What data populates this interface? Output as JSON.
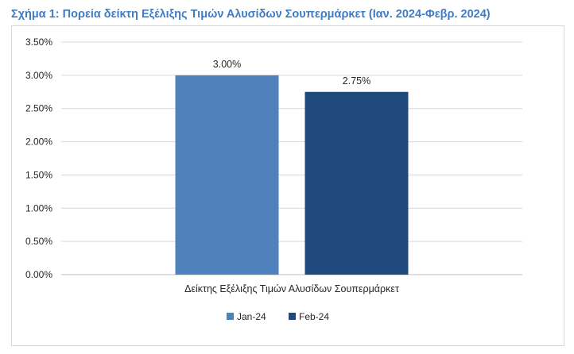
{
  "title": "Σχήμα 1: Πορεία δείκτη Εξέλιξης Τιμών Αλυσίδων Σουπερμάρκετ (Ιαν. 2024-Φεβρ. 2024)",
  "chart_data": {
    "type": "bar",
    "categories": [
      "Δείκτης Εξέλιξης Τιμών Αλυσίδων Σουπερμάρκετ"
    ],
    "series": [
      {
        "name": "Jan-24",
        "values": [
          3.0
        ],
        "label": "3.00%",
        "color": "#4f81bd"
      },
      {
        "name": "Feb-24",
        "values": [
          2.75
        ],
        "label": "2.75%",
        "color": "#1f497d"
      }
    ],
    "ylim": [
      0,
      3.5
    ],
    "yticks": [
      "0.00%",
      "0.50%",
      "1.00%",
      "1.50%",
      "2.00%",
      "2.50%",
      "3.00%",
      "3.50%"
    ],
    "ytick_values": [
      0,
      0.5,
      1.0,
      1.5,
      2.0,
      2.5,
      3.0,
      3.5
    ],
    "grid": true,
    "legend": "bottom"
  }
}
